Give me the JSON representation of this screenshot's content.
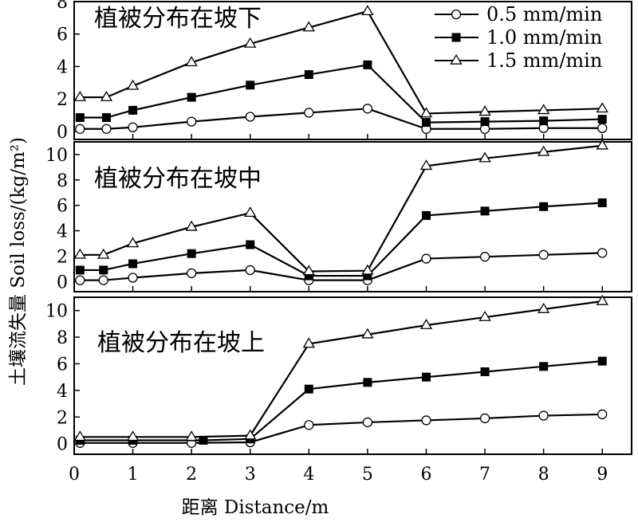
{
  "chart_data": {
    "type": "line",
    "xlabel": "距离 Distance/m",
    "ylabel": "土壤流失量 Soil loss/(kg/m²)",
    "xlim": [
      0,
      9.5
    ],
    "xticks": [
      "0",
      "1",
      "2",
      "3",
      "4",
      "5",
      "6",
      "7",
      "8",
      "9"
    ],
    "legend": [
      {
        "name": "0.5 mm/min",
        "marker": "circle-open"
      },
      {
        "name": "1.0 mm/min",
        "marker": "square-filled"
      },
      {
        "name": "1.5 mm/min",
        "marker": "triangle-open"
      }
    ],
    "panels": [
      {
        "title": "植被分布在坡下",
        "ylim": [
          -0.5,
          8
        ],
        "yticks": [
          "0",
          "2",
          "4",
          "6",
          "8"
        ],
        "series": [
          {
            "name": "0.5 mm/min",
            "x": [
              0.1,
              0.55,
              1,
              2,
              3,
              4,
              5,
              6,
              7,
              8,
              9
            ],
            "y": [
              0.15,
              0.15,
              0.25,
              0.6,
              0.9,
              1.15,
              1.4,
              0.15,
              0.15,
              0.2,
              0.2
            ]
          },
          {
            "name": "1.0 mm/min",
            "x": [
              0.1,
              0.55,
              1,
              2,
              3,
              4,
              5,
              6,
              7,
              8,
              9
            ],
            "y": [
              0.85,
              0.85,
              1.3,
              2.1,
              2.85,
              3.5,
              4.1,
              0.55,
              0.6,
              0.65,
              0.75
            ]
          },
          {
            "name": "1.5 mm/min",
            "x": [
              0.1,
              0.55,
              1,
              2,
              3,
              4,
              5,
              6,
              7,
              8,
              9
            ],
            "y": [
              2.1,
              2.1,
              2.8,
              4.25,
              5.4,
              6.4,
              7.4,
              1.1,
              1.2,
              1.3,
              1.4
            ]
          }
        ]
      },
      {
        "title": "植被分布在坡中",
        "ylim": [
          -0.8,
          11
        ],
        "yticks": [
          "0",
          "2",
          "4",
          "6",
          "8",
          "10"
        ],
        "series": [
          {
            "name": "0.5 mm/min",
            "x": [
              0.1,
              0.5,
              1,
              2,
              3,
              4,
              5,
              6,
              7,
              8,
              9
            ],
            "y": [
              0.1,
              0.1,
              0.3,
              0.65,
              0.9,
              0.1,
              0.1,
              1.8,
              1.95,
              2.1,
              2.25
            ]
          },
          {
            "name": "1.0 mm/min",
            "x": [
              0.1,
              0.5,
              1,
              2,
              3,
              4,
              5,
              6,
              7,
              8,
              9
            ],
            "y": [
              0.9,
              0.9,
              1.4,
              2.2,
              2.9,
              0.45,
              0.45,
              5.2,
              5.55,
              5.9,
              6.2
            ]
          },
          {
            "name": "1.5 mm/min",
            "x": [
              0.1,
              0.5,
              1,
              2,
              3,
              4,
              5,
              6,
              7,
              8,
              9
            ],
            "y": [
              2.1,
              2.1,
              3.0,
              4.3,
              5.4,
              0.8,
              0.85,
              9.1,
              9.7,
              10.2,
              10.7
            ]
          }
        ]
      },
      {
        "title": "植被分布在坡上",
        "ylim": [
          -0.8,
          11
        ],
        "yticks": [
          "0",
          "2",
          "4",
          "6",
          "8",
          "10"
        ],
        "series": [
          {
            "name": "0.5 mm/min",
            "x": [
              0.1,
              1,
              2,
              3,
              4,
              5,
              6,
              7,
              8,
              9
            ],
            "y": [
              0.05,
              0.05,
              0.05,
              0.1,
              1.4,
              1.6,
              1.75,
              1.9,
              2.1,
              2.2
            ]
          },
          {
            "name": "1.0 mm/min",
            "x": [
              0.1,
              1,
              2.2,
              3,
              4,
              5,
              6,
              7,
              8,
              9
            ],
            "y": [
              0.25,
              0.25,
              0.25,
              0.35,
              4.1,
              4.6,
              5.0,
              5.4,
              5.8,
              6.2
            ]
          },
          {
            "name": "1.5 mm/min",
            "x": [
              0.1,
              1,
              2,
              3,
              4,
              5,
              6,
              7,
              8,
              9
            ],
            "y": [
              0.5,
              0.5,
              0.5,
              0.6,
              7.5,
              8.2,
              8.9,
              9.5,
              10.1,
              10.7
            ]
          }
        ]
      }
    ]
  }
}
